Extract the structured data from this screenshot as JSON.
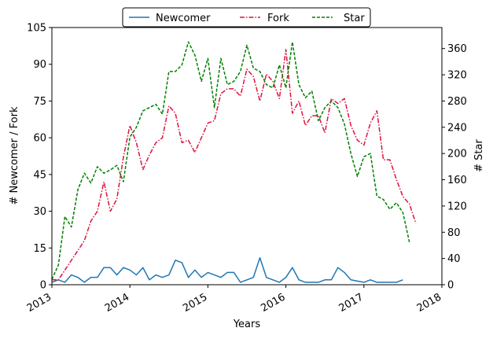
{
  "chart_data": {
    "type": "line",
    "xlabel": "Years",
    "ylabel_left": "# Newcomer / Fork",
    "ylabel_right": "# Star",
    "x_range": [
      2013.0,
      2018.0
    ],
    "x_ticks": [
      "2013",
      "2014",
      "2015",
      "2016",
      "2017",
      "2018"
    ],
    "ylim_left": [
      0,
      105
    ],
    "y_ticks_left": [
      0,
      15,
      30,
      45,
      60,
      75,
      90,
      105
    ],
    "ylim_right": [
      0,
      392
    ],
    "y_ticks_right": [
      0,
      40,
      80,
      120,
      160,
      200,
      240,
      280,
      320,
      360
    ],
    "grid": false,
    "legend_placement": "top-center (above plot)",
    "series": [
      {
        "name": "Newcomer",
        "axis": "left",
        "color": "#1f77b4",
        "style": "solid",
        "x": [
          2013.0,
          2013.0833,
          2013.1667,
          2013.25,
          2013.3333,
          2013.4167,
          2013.5,
          2013.5833,
          2013.6667,
          2013.75,
          2013.8333,
          2013.9167,
          2014.0,
          2014.0833,
          2014.1667,
          2014.25,
          2014.3333,
          2014.4167,
          2014.5,
          2014.5833,
          2014.6667,
          2014.75,
          2014.8333,
          2014.9167,
          2015.0,
          2015.0833,
          2015.1667,
          2015.25,
          2015.3333,
          2015.4167,
          2015.5,
          2015.5833,
          2015.6667,
          2015.75,
          2015.8333,
          2015.9167,
          2016.0,
          2016.0833,
          2016.1667,
          2016.25,
          2016.3333,
          2016.4167,
          2016.5,
          2016.5833,
          2016.6667,
          2016.75,
          2016.8333,
          2016.9167,
          2017.0,
          2017.0833,
          2017.1667,
          2017.25,
          2017.3333,
          2017.4167,
          2017.5
        ],
        "values": [
          1,
          2,
          1,
          4,
          3,
          1,
          3,
          3,
          7,
          7,
          4,
          7,
          6,
          4,
          7,
          2,
          4,
          3,
          4,
          10,
          9,
          3,
          6,
          3,
          5,
          4,
          3,
          5,
          5,
          1,
          2,
          3,
          11,
          3,
          2,
          1,
          3,
          7,
          2,
          1,
          1,
          1,
          2,
          2,
          7,
          5,
          2,
          1.5,
          1,
          2,
          1,
          1,
          1,
          1,
          2
        ]
      },
      {
        "name": "Fork",
        "axis": "left",
        "color": "#dc143c",
        "style": "dashdot",
        "x": [
          2013.0,
          2013.0833,
          2013.1667,
          2013.25,
          2013.3333,
          2013.4167,
          2013.5,
          2013.5833,
          2013.6667,
          2013.75,
          2013.8333,
          2013.9167,
          2014.0,
          2014.0833,
          2014.1667,
          2014.25,
          2014.3333,
          2014.4167,
          2014.5,
          2014.5833,
          2014.6667,
          2014.75,
          2014.8333,
          2014.9167,
          2015.0,
          2015.0833,
          2015.1667,
          2015.25,
          2015.3333,
          2015.4167,
          2015.5,
          2015.5833,
          2015.6667,
          2015.75,
          2015.8333,
          2015.9167,
          2016.0,
          2016.0833,
          2016.1667,
          2016.25,
          2016.3333,
          2016.4167,
          2016.5,
          2016.5833,
          2016.6667,
          2016.75,
          2016.8333,
          2016.9167,
          2017.0,
          2017.0833,
          2017.1667,
          2017.25,
          2017.3333,
          2017.4167,
          2017.5,
          2017.5833,
          2017.6667,
          2017.75
        ],
        "values": [
          2,
          2,
          6,
          10,
          14,
          18,
          26,
          30,
          42,
          30,
          35,
          52,
          65,
          58,
          47,
          53,
          58,
          60,
          73,
          70,
          58,
          59,
          54,
          60,
          66,
          67,
          78,
          80,
          80,
          77,
          88,
          85,
          75,
          86,
          83,
          76,
          96,
          70,
          75,
          65,
          69,
          69,
          62,
          76,
          74,
          76,
          65,
          59,
          57,
          66,
          71,
          51,
          51,
          43,
          36,
          33,
          25,
          null
        ]
      },
      {
        "name": "Star",
        "axis": "right",
        "color": "#008000",
        "style": "dashed",
        "x": [
          2013.0,
          2013.0833,
          2013.1667,
          2013.25,
          2013.3333,
          2013.4167,
          2013.5,
          2013.5833,
          2013.6667,
          2013.75,
          2013.8333,
          2013.9167,
          2014.0,
          2014.0833,
          2014.1667,
          2014.25,
          2014.3333,
          2014.4167,
          2014.5,
          2014.5833,
          2014.6667,
          2014.75,
          2014.8333,
          2014.9167,
          2015.0,
          2015.0833,
          2015.1667,
          2015.25,
          2015.3333,
          2015.4167,
          2015.5,
          2015.5833,
          2015.6667,
          2015.75,
          2015.8333,
          2015.9167,
          2016.0,
          2016.0833,
          2016.1667,
          2016.25,
          2016.3333,
          2016.4167,
          2016.5,
          2016.5833,
          2016.6667,
          2016.75,
          2016.8333,
          2016.9167,
          2017.0,
          2017.0833,
          2017.1667,
          2017.25,
          2017.3333,
          2017.4167,
          2017.5,
          2017.5833,
          2017.6667,
          2017.75
        ],
        "values": [
          8,
          30,
          104,
          88,
          145,
          170,
          155,
          180,
          170,
          175,
          182,
          157,
          225,
          240,
          265,
          270,
          275,
          260,
          325,
          325,
          335,
          370,
          350,
          310,
          345,
          270,
          345,
          305,
          310,
          325,
          365,
          330,
          325,
          305,
          300,
          335,
          300,
          370,
          305,
          285,
          295,
          250,
          270,
          280,
          270,
          245,
          200,
          165,
          195,
          200,
          135,
          130,
          115,
          125,
          110,
          65,
          null,
          null
        ]
      }
    ]
  }
}
